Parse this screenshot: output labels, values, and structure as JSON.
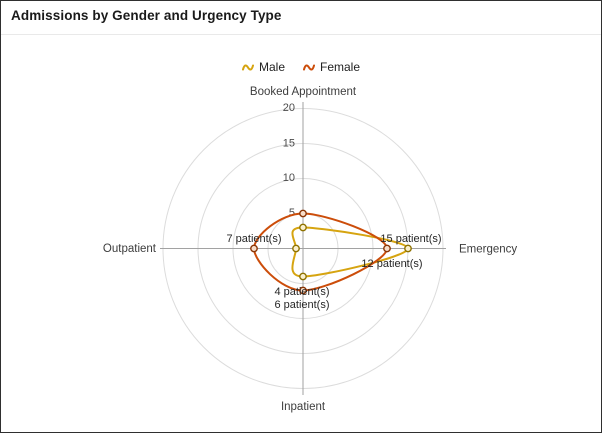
{
  "window": {
    "title": "Admissions by Gender and Urgency Type"
  },
  "chart_data": {
    "type": "radar",
    "title": "Admissions by Gender and Urgency Type",
    "categories": [
      "Booked Appointment",
      "Emergency",
      "Inpatient",
      "Outpatient"
    ],
    "series": [
      {
        "name": "Male",
        "color": "#D6A410",
        "marker_stroke": "#8F7200",
        "marker_fill": "#FBF0CC",
        "values": [
          3,
          15,
          4,
          1
        ]
      },
      {
        "name": "Female",
        "color": "#CC4D0A",
        "marker_stroke": "#8A3505",
        "marker_fill": "#F8DDC9",
        "values": [
          5,
          12,
          6,
          7
        ]
      }
    ],
    "radial_ticks": [
      5,
      10,
      15,
      20
    ],
    "rmin": 0,
    "rmax": 20,
    "grid": "circular",
    "legend_position": "top-center",
    "point_labels": [
      {
        "series": "Female",
        "category": "Outpatient",
        "value": 7,
        "text": "7 patient(s)"
      },
      {
        "series": "Male",
        "category": "Emergency",
        "value": 15,
        "text": "15 patient(s)"
      },
      {
        "series": "Female",
        "category": "Emergency",
        "value": 12,
        "text": "12 patient(s)"
      },
      {
        "series": "Male",
        "category": "Inpatient",
        "value": 4,
        "text": "4 patient(s)"
      },
      {
        "series": "Female",
        "category": "Inpatient",
        "value": 6,
        "text": "6 patient(s)"
      }
    ]
  }
}
